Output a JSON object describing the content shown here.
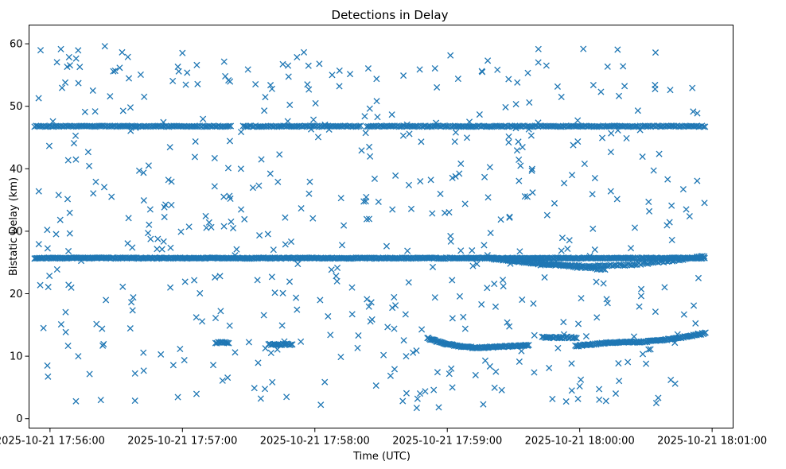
{
  "chart_data": {
    "type": "scatter",
    "title": "Detections in Delay",
    "xlabel": "Time (UTC)",
    "ylabel": "Bistatic Delay (km)",
    "marker": "x",
    "color": "#1f77b4",
    "grid": false,
    "xlim_seconds_from_1755": [
      50.5,
      369.5
    ],
    "ylim": [
      -1.5,
      63
    ],
    "x_ticks": [
      {
        "t": 60,
        "label": "2025-10-21 17:56:00"
      },
      {
        "t": 120,
        "label": "2025-10-21 17:57:00"
      },
      {
        "t": 180,
        "label": "2025-10-21 17:58:00"
      },
      {
        "t": 240,
        "label": "2025-10-21 17:59:00"
      },
      {
        "t": 300,
        "label": "2025-10-21 18:00:00"
      },
      {
        "t": 360,
        "label": "2025-10-21 18:01:00"
      }
    ],
    "y_ticks": [
      0,
      10,
      20,
      30,
      40,
      50,
      60
    ],
    "series": [
      {
        "name": "Constant track near 46.8 km",
        "description": "Dense horizontal line of detections with a few gaps",
        "t_start": 53,
        "t_end": 357,
        "step": 0.7,
        "y": 46.8,
        "gaps": [
          [
            142,
            147
          ],
          [
            201,
            203
          ]
        ]
      },
      {
        "name": "Constant track near 25.7 km",
        "description": "Dense horizontal line of detections across whole time span",
        "t_start": 53,
        "t_end": 357,
        "step": 0.55,
        "y": 25.7
      },
      {
        "name": "Diverging track (upper curve)",
        "t_start": 258,
        "t_end": 357,
        "step": 0.8,
        "y_start": 25.7,
        "y_end": 26.0,
        "curvature": 1.4
      },
      {
        "name": "Diverging track (lower curve)",
        "t_start": 262,
        "t_end": 312,
        "step": 0.9,
        "y_start": 25.6,
        "y_end": 23.8,
        "curvature": 0
      },
      {
        "name": "Curved track near 12 km (falling)",
        "t_start": 231,
        "t_end": 277,
        "step": 0.45,
        "y_start": 12.9,
        "y_mid": 11.4,
        "y_end": 11.8
      },
      {
        "name": "Curved track near 12 km (rising)",
        "t_start": 298,
        "t_end": 357,
        "step": 0.5,
        "y_start": 11.6,
        "y_mid": 12.3,
        "y_end": 13.7
      },
      {
        "name": "Short segments near 12 km",
        "segments": [
          {
            "t_start": 135,
            "t_end": 141,
            "y": 12.2
          },
          {
            "t_start": 159,
            "t_end": 170,
            "y": 11.9
          },
          {
            "t_start": 283,
            "t_end": 299,
            "y": 13.0
          }
        ],
        "step": 0.6
      },
      {
        "name": "Scattered false alarms",
        "count": 520,
        "t_range": [
          53,
          357
        ],
        "y_range": [
          1,
          60
        ]
      }
    ]
  }
}
